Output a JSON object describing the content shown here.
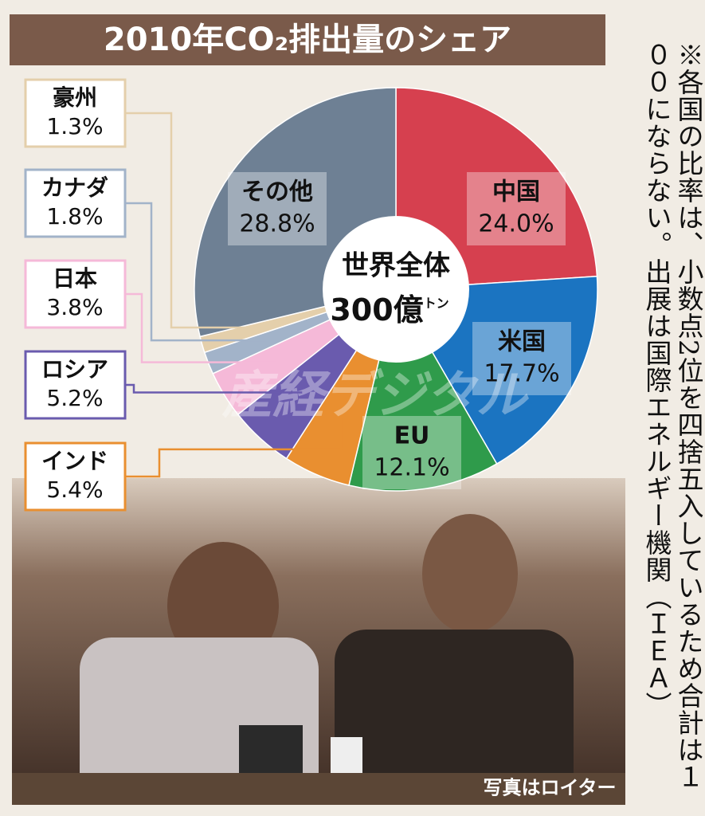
{
  "chart_data": {
    "type": "pie",
    "title": "2010年CO₂排出量のシェア",
    "center_title": "世界全体",
    "center_value": "300億",
    "center_unit": "トン",
    "categories": [
      "中国",
      "米国",
      "EU",
      "インド",
      "ロシア",
      "日本",
      "カナダ",
      "豪州",
      "その他"
    ],
    "values": [
      24.0,
      17.7,
      12.1,
      5.4,
      5.2,
      3.8,
      1.8,
      1.3,
      28.8
    ],
    "value_labels": [
      "24.0%",
      "17.7%",
      "12.1%",
      "5.4%",
      "5.2%",
      "3.8%",
      "1.8%",
      "1.3%",
      "28.8%"
    ],
    "colors": [
      "#d6404f",
      "#1b74c1",
      "#2f9b4b",
      "#e98f30",
      "#6a5bae",
      "#f5b9d8",
      "#a2b3c9",
      "#e4cfab",
      "#6e8094"
    ]
  },
  "note": "※各国の比率は、小数点2位を四捨五入しているため合計は１００にならない。出展は国際エネルギー機関（ＩＥＡ）",
  "photo_credit": "写真はロイター",
  "watermark": "産経デジタル"
}
